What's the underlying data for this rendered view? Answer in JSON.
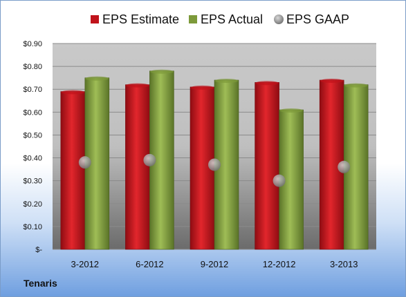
{
  "company": "Tenaris",
  "chart_data": {
    "type": "bar",
    "categories": [
      "3-2012",
      "6-2012",
      "9-2012",
      "12-2012",
      "3-2013"
    ],
    "series": [
      {
        "name": "EPS Estimate",
        "type": "bar",
        "color": "#c0131b",
        "values": [
          0.69,
          0.72,
          0.71,
          0.73,
          0.74
        ]
      },
      {
        "name": "EPS Actual",
        "type": "bar",
        "color": "#7d9a3a",
        "values": [
          0.75,
          0.78,
          0.74,
          0.61,
          0.72
        ]
      },
      {
        "name": "EPS GAAP",
        "type": "scatter",
        "color": "#9a9a9a",
        "values": [
          0.38,
          0.39,
          0.37,
          0.3,
          0.36
        ]
      }
    ],
    "yticks": [
      "$-",
      "$0.10",
      "$0.20",
      "$0.30",
      "$0.40",
      "$0.50",
      "$0.60",
      "$0.70",
      "$0.80",
      "$0.90"
    ],
    "ylim": [
      0,
      0.9
    ],
    "grid": true,
    "legend_position": "top"
  }
}
